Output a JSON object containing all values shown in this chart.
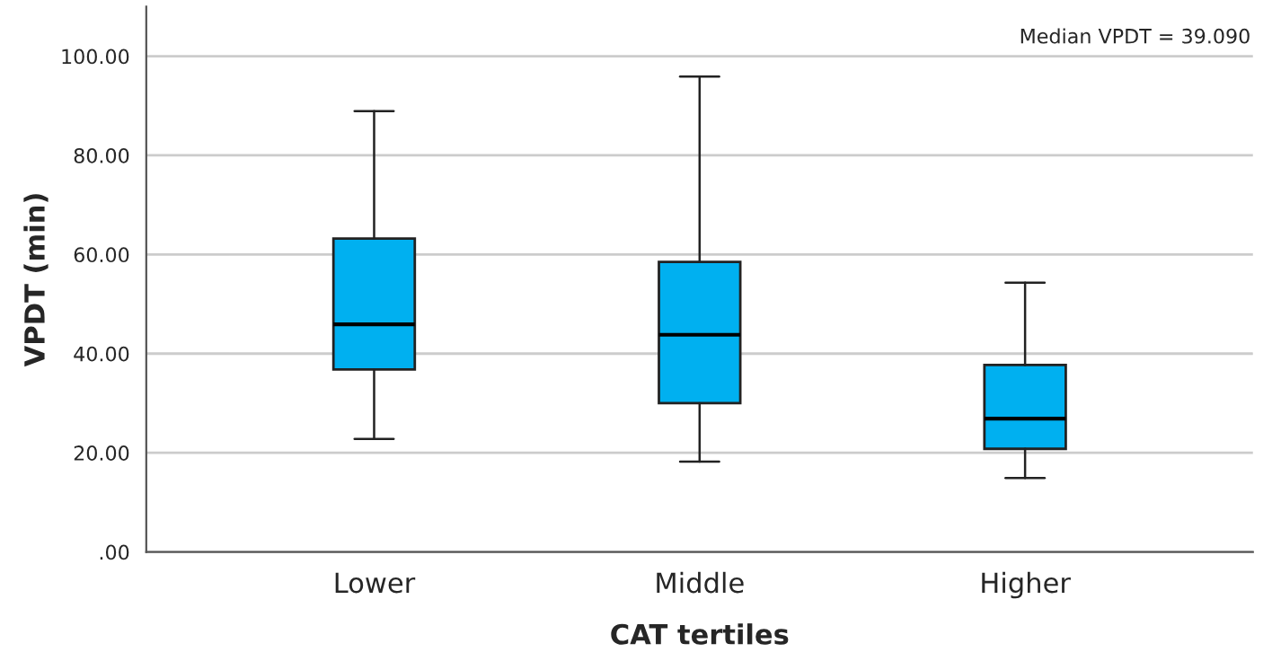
{
  "chart_data": {
    "type": "box",
    "xlabel": "CAT tertiles",
    "ylabel": "VPDT (min)",
    "categories": [
      "Lower",
      "Middle",
      "Higher"
    ],
    "boxes": [
      {
        "low": 22.8,
        "q1": 36.8,
        "median": 45.9,
        "q3": 63.2,
        "high": 88.9
      },
      {
        "low": 18.2,
        "q1": 30.0,
        "median": 43.8,
        "q3": 58.5,
        "high": 95.9
      },
      {
        "low": 14.9,
        "q1": 20.8,
        "median": 26.9,
        "q3": 37.7,
        "high": 54.3
      }
    ],
    "color": "#00b0f0",
    "ylim": [
      0,
      110
    ],
    "yticks": [
      {
        "value": 0,
        "label": ".00"
      },
      {
        "value": 20,
        "label": "20.00"
      },
      {
        "value": 40,
        "label": "40.00"
      },
      {
        "value": 60,
        "label": "60.00"
      },
      {
        "value": 80,
        "label": "80.00"
      },
      {
        "value": 100,
        "label": "100.00"
      }
    ],
    "grid": "y",
    "annotations": [
      "Median VPDT = 39.090"
    ]
  }
}
